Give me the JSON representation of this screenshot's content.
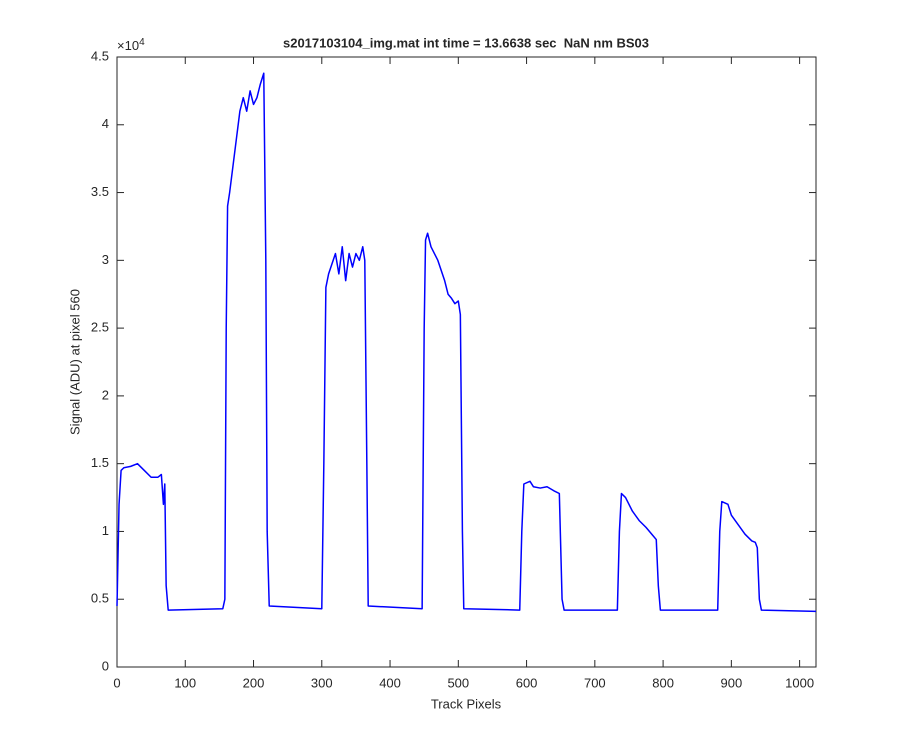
{
  "chart_data": {
    "type": "line",
    "title": "s2017103104_img.mat int time = 13.6638 sec  NaN nm BS03",
    "x_label": "Track Pixels",
    "y_label": "Signal (ADU) at pixel 560",
    "y_multiplier": "×10",
    "y_exponent": "4",
    "xlim": [
      0,
      1024
    ],
    "ylim": [
      0,
      4.5
    ],
    "xticks": [
      0,
      100,
      200,
      300,
      400,
      500,
      600,
      700,
      800,
      900,
      1000
    ],
    "yticks": [
      0,
      0.5,
      1,
      1.5,
      2,
      2.5,
      3,
      3.5,
      4,
      4.5
    ],
    "grid": false,
    "series": [
      {
        "color": "#0000ff",
        "x": [
          0,
          3,
          6,
          10,
          20,
          30,
          40,
          50,
          60,
          65,
          68,
          70,
          72,
          75,
          155,
          158,
          160,
          162,
          165,
          170,
          175,
          180,
          185,
          190,
          195,
          200,
          205,
          210,
          215,
          218,
          220,
          223,
          300,
          303,
          306,
          310,
          320,
          325,
          330,
          335,
          340,
          345,
          350,
          355,
          360,
          363,
          366,
          368,
          447,
          450,
          452,
          455,
          460,
          470,
          480,
          485,
          490,
          495,
          500,
          503,
          506,
          508,
          590,
          593,
          596,
          605,
          610,
          620,
          630,
          640,
          648,
          652,
          655,
          733,
          736,
          739,
          745,
          755,
          765,
          775,
          785,
          790,
          793,
          796,
          880,
          883,
          886,
          895,
          900,
          910,
          920,
          930,
          935,
          938,
          941,
          944,
          1024
        ],
        "values": [
          0.45,
          1.2,
          1.45,
          1.47,
          1.48,
          1.5,
          1.45,
          1.4,
          1.4,
          1.42,
          1.2,
          1.35,
          0.6,
          0.42,
          0.43,
          0.5,
          2.5,
          3.4,
          3.5,
          3.7,
          3.9,
          4.1,
          4.2,
          4.1,
          4.25,
          4.15,
          4.2,
          4.3,
          4.38,
          3.0,
          1.0,
          0.45,
          0.43,
          1.5,
          2.8,
          2.9,
          3.05,
          2.9,
          3.1,
          2.85,
          3.05,
          2.95,
          3.05,
          3.0,
          3.1,
          3.0,
          1.5,
          0.45,
          0.43,
          2.5,
          3.15,
          3.2,
          3.1,
          3.0,
          2.85,
          2.75,
          2.72,
          2.68,
          2.7,
          2.6,
          1.0,
          0.43,
          0.42,
          1.0,
          1.35,
          1.37,
          1.33,
          1.32,
          1.33,
          1.3,
          1.28,
          0.5,
          0.42,
          0.42,
          1.0,
          1.28,
          1.25,
          1.15,
          1.08,
          1.03,
          0.97,
          0.94,
          0.6,
          0.42,
          0.42,
          1.0,
          1.22,
          1.2,
          1.12,
          1.05,
          0.98,
          0.93,
          0.92,
          0.88,
          0.5,
          0.42,
          0.41
        ]
      }
    ]
  }
}
